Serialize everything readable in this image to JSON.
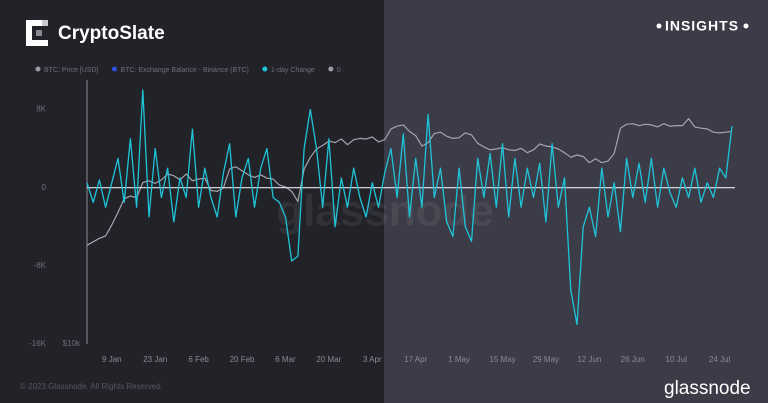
{
  "chart_data": {
    "type": "line",
    "brand": "CryptoSlate",
    "badge": "INSIGHTS",
    "watermark": "glassnode",
    "footer": "© 2023 Glassnode. All Rights Reserved.",
    "source": "glassnode",
    "legend": [
      {
        "name": "BTC: Price [USD]",
        "color": "#9a9aa6"
      },
      {
        "name": "BTC: Exchange Balance - Binance (BTC)",
        "color": "#2e4fe0"
      },
      {
        "name": "1-day Change",
        "color": "#1fc4d8"
      },
      {
        "name": "0",
        "color": "#9a9aa6"
      }
    ],
    "categories": [
      null,
      null,
      null,
      null,
      "9 Jan",
      null,
      null,
      null,
      null,
      null,
      null,
      "23 Jan",
      null,
      null,
      null,
      null,
      null,
      null,
      "6 Feb",
      null,
      null,
      null,
      null,
      null,
      null,
      "20 Feb",
      null,
      null,
      null,
      null,
      null,
      null,
      "6 Mar",
      null,
      null,
      null,
      null,
      null,
      null,
      "20 Mar",
      null,
      null,
      null,
      null,
      null,
      null,
      "3 Apr",
      null,
      null,
      null,
      null,
      null,
      null,
      "17 Apr",
      null,
      null,
      null,
      null,
      null,
      null,
      "1 May",
      null,
      null,
      null,
      null,
      null,
      null,
      "15 May",
      null,
      null,
      null,
      null,
      null,
      null,
      "29 May",
      null,
      null,
      null,
      null,
      null,
      null,
      "12 Jun",
      null,
      null,
      null,
      null,
      null,
      null,
      "26 Jun",
      null,
      null,
      null,
      null,
      null,
      null,
      "10 Jul",
      null,
      null,
      null,
      null,
      null,
      null,
      "24 Jul",
      null,
      null
    ],
    "series": [
      {
        "legend": 0,
        "axis": "y2",
        "color": "#a4a4b0",
        "values": [
          16500,
          16800,
          17100,
          17300,
          18300,
          19500,
          20900,
          21200,
          21000,
          22700,
          22900,
          22600,
          23000,
          23700,
          23500,
          23000,
          23700,
          22900,
          23100,
          23200,
          21800,
          21700,
          22100,
          24300,
          24600,
          24100,
          23600,
          23300,
          23600,
          23200,
          23100,
          22400,
          22200,
          21700,
          20600,
          24300,
          25800,
          26900,
          27400,
          28000,
          27800,
          28300,
          27500,
          28200,
          28400,
          28300,
          28600,
          27900,
          28200,
          29800,
          30200,
          30400,
          29400,
          28800,
          27300,
          27800,
          29100,
          29300,
          28700,
          28400,
          28500,
          29200,
          28900,
          27700,
          27200,
          26800,
          26900,
          27100,
          26800,
          26700,
          27000,
          26400,
          26800,
          27600,
          27300,
          27200,
          26900,
          26400,
          25800,
          26100,
          25900,
          25100,
          25600,
          25100,
          25300,
          26300,
          29900,
          30500,
          30600,
          30300,
          30500,
          30400,
          30100,
          30600,
          30200,
          30300,
          30300,
          31400,
          30100,
          29900,
          29800,
          29300,
          29200,
          29300,
          29400
        ]
      },
      {
        "legend": 2,
        "color": "#1fc4d8",
        "values": [
          500,
          -1500,
          800,
          -2000,
          500,
          3000,
          -1500,
          5000,
          -2000,
          10000,
          -3000,
          4000,
          -1000,
          2000,
          -3500,
          1000,
          -1000,
          6000,
          -2000,
          2000,
          -1000,
          -3000,
          1500,
          4500,
          -3000,
          1000,
          3000,
          -2000,
          2000,
          4000,
          -1000,
          -1500,
          -3000,
          -7500,
          -7000,
          4000,
          8000,
          4000,
          -2000,
          5000,
          -4000,
          1000,
          -2000,
          2000,
          -1000,
          -3000,
          500,
          -2000,
          1500,
          4000,
          -1000,
          5500,
          -3000,
          3000,
          -2000,
          7500,
          -1000,
          2000,
          -3500,
          -5000,
          2000,
          -4000,
          -5500,
          3000,
          -1000,
          3500,
          -2000,
          4500,
          -3000,
          3000,
          -2000,
          2000,
          -1000,
          2500,
          -3500,
          4500,
          -2000,
          1000,
          -10500,
          -14000,
          -4000,
          -2000,
          -5000,
          2000,
          -3000,
          500,
          -4500,
          3000,
          -1000,
          2500,
          -1500,
          3000,
          -2000,
          2000,
          -500,
          -2000,
          1000,
          -1000,
          2000,
          -1500,
          500,
          -1000,
          2000,
          1000,
          6300
        ]
      }
    ],
    "ylim": [
      -16000,
      10000
    ],
    "yticks": [
      {
        "value": 8000,
        "label": "8K"
      },
      0,
      {
        "value": -8000,
        "label": "-8K"
      },
      {
        "value": -16000,
        "label": "-16K"
      }
    ],
    "y2lim": [
      10000,
      36300
    ],
    "y2ticks": [
      {
        "value": 10000,
        "label": "$10k"
      }
    ],
    "y2log": true,
    "zero_line": true
  }
}
